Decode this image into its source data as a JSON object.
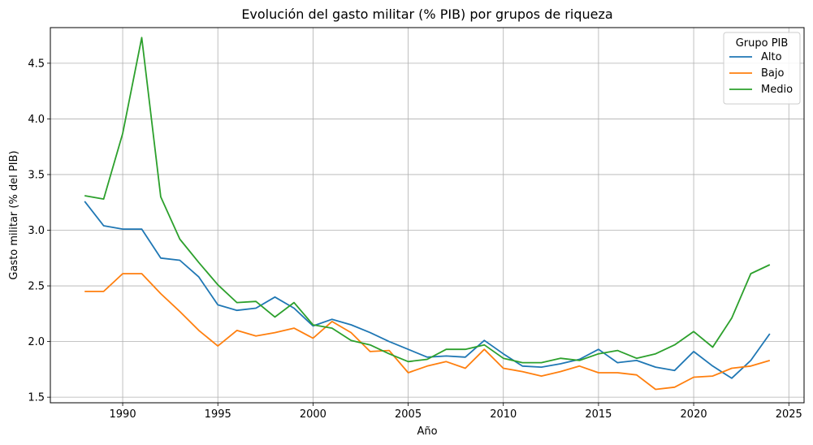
{
  "chart_data": {
    "type": "line",
    "title": "Evolución del gasto militar (% PIB) por grupos de riqueza",
    "xlabel": "Año",
    "ylabel": "Gasto militar (% del PIB)",
    "xlim": [
      1986.2,
      2025.8
    ],
    "ylim": [
      1.45,
      4.82
    ],
    "xticks": [
      1990,
      1995,
      2000,
      2005,
      2010,
      2015,
      2020,
      2025
    ],
    "yticks": [
      1.5,
      2.0,
      2.5,
      3.0,
      3.5,
      4.0,
      4.5
    ],
    "ytick_labels": [
      "1.5",
      "2.0",
      "2.5",
      "3.0",
      "3.5",
      "4.0",
      "4.5"
    ],
    "grid": true,
    "legend": {
      "title": "Grupo PIB",
      "placement": "top-right"
    },
    "x": [
      1988,
      1989,
      1990,
      1991,
      1992,
      1993,
      1994,
      1995,
      1996,
      1997,
      1998,
      1999,
      2000,
      2001,
      2002,
      2003,
      2004,
      2005,
      2006,
      2007,
      2008,
      2009,
      2010,
      2011,
      2012,
      2013,
      2014,
      2015,
      2016,
      2017,
      2018,
      2019,
      2020,
      2021,
      2022,
      2023,
      2024
    ],
    "series": [
      {
        "name": "Alto",
        "color": "#1f77b4",
        "values": [
          3.26,
          3.04,
          3.01,
          3.01,
          2.75,
          2.73,
          2.58,
          2.33,
          2.28,
          2.3,
          2.4,
          2.3,
          2.14,
          2.2,
          2.15,
          2.08,
          2.0,
          1.93,
          1.86,
          1.87,
          1.86,
          2.01,
          1.89,
          1.78,
          1.77,
          1.8,
          1.84,
          1.93,
          1.81,
          1.83,
          1.77,
          1.74,
          1.91,
          1.78,
          1.67,
          1.83,
          2.07
        ]
      },
      {
        "name": "Bajo",
        "color": "#ff7f0e",
        "values": [
          2.45,
          2.45,
          2.61,
          2.61,
          2.43,
          2.27,
          2.1,
          1.96,
          2.1,
          2.05,
          2.08,
          2.12,
          2.03,
          2.18,
          2.08,
          1.91,
          1.92,
          1.72,
          1.78,
          1.82,
          1.76,
          1.93,
          1.76,
          1.73,
          1.69,
          1.73,
          1.78,
          1.72,
          1.72,
          1.7,
          1.57,
          1.59,
          1.68,
          1.69,
          1.76,
          1.78,
          1.83
        ]
      },
      {
        "name": "Medio",
        "color": "#2ca02c",
        "values": [
          3.31,
          3.28,
          3.87,
          4.73,
          3.3,
          2.92,
          2.71,
          2.51,
          2.35,
          2.36,
          2.22,
          2.35,
          2.15,
          2.12,
          2.01,
          1.97,
          1.89,
          1.82,
          1.84,
          1.93,
          1.93,
          1.97,
          1.85,
          1.81,
          1.81,
          1.85,
          1.83,
          1.89,
          1.92,
          1.85,
          1.89,
          1.97,
          2.09,
          1.95,
          2.21,
          2.61,
          2.69
        ]
      }
    ]
  }
}
